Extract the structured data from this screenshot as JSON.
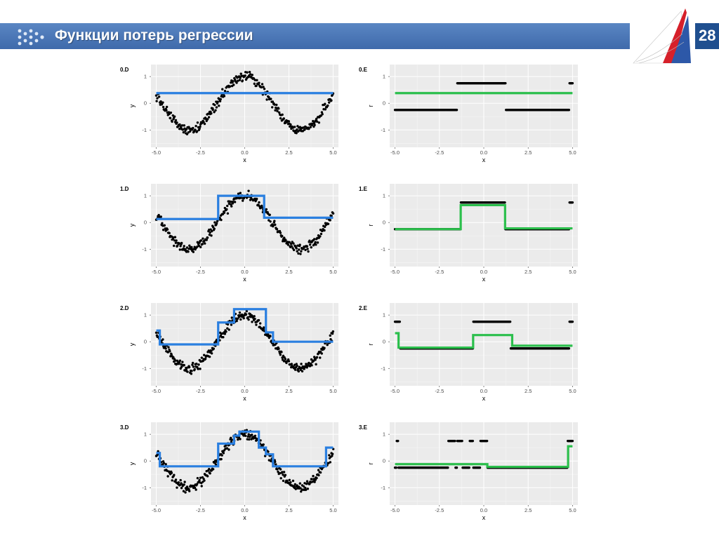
{
  "slide": {
    "title": "Функции потерь регрессии",
    "page_number": "28",
    "accent_color": "#4472c4",
    "icons": [
      "dots-logo-icon",
      "corner-emblem-icon"
    ]
  },
  "chart_data": [
    {
      "id": "0.D",
      "type": "scatter",
      "title": "0.D",
      "xlabel": "x",
      "ylabel": "y",
      "xlim": [
        -5.3,
        5.3
      ],
      "ylim": [
        -1.65,
        1.45
      ],
      "xticks": [
        "-5.0",
        "-2.5",
        "0.0",
        "2.5",
        "5.0"
      ],
      "yticks": [
        "1",
        "0",
        "-1"
      ],
      "points": "sine",
      "line_color": "#2a7fe0",
      "fit_steps": [
        [
          -5,
          0.38
        ],
        [
          5,
          0.38
        ]
      ]
    },
    {
      "id": "0.E",
      "type": "scatter",
      "title": "0.E",
      "xlabel": "x",
      "ylabel": "r",
      "xlim": [
        -5.3,
        5.3
      ],
      "ylim": [
        -1.65,
        1.45
      ],
      "xticks": [
        "-5.0",
        "-2.5",
        "0.0",
        "2.5",
        "5.0"
      ],
      "yticks": [
        "1",
        "0",
        "-1"
      ],
      "points": "residual",
      "line_color": "#2bbf4c",
      "levels": [
        -0.25,
        0.75
      ],
      "high_ranges": [
        [
          -1.5,
          1.25
        ],
        [
          4.8,
          5
        ]
      ],
      "fit_steps": [
        [
          -5,
          0.38
        ],
        [
          5,
          0.38
        ]
      ]
    },
    {
      "id": "1.D",
      "type": "scatter",
      "title": "1.D",
      "xlabel": "x",
      "ylabel": "y",
      "xlim": [
        -5.3,
        5.3
      ],
      "ylim": [
        -1.65,
        1.45
      ],
      "xticks": [
        "-5.0",
        "-2.5",
        "0.0",
        "2.5",
        "5.0"
      ],
      "yticks": [
        "1",
        "0",
        "-1"
      ],
      "points": "sine",
      "line_color": "#2a7fe0",
      "fit_steps": [
        [
          -5,
          0.13
        ],
        [
          -1.5,
          1.0
        ],
        [
          1.1,
          0.18
        ],
        [
          5,
          0.18
        ]
      ]
    },
    {
      "id": "1.E",
      "type": "scatter",
      "title": "1.E",
      "xlabel": "x",
      "ylabel": "r",
      "xlim": [
        -5.3,
        5.3
      ],
      "ylim": [
        -1.65,
        1.45
      ],
      "xticks": [
        "-5.0",
        "-2.5",
        "0.0",
        "2.5",
        "5.0"
      ],
      "yticks": [
        "1",
        "0",
        "-1"
      ],
      "points": "residual",
      "line_color": "#2bbf4c",
      "levels": [
        -0.25,
        0.75
      ],
      "high_ranges": [
        [
          -1.3,
          1.2
        ],
        [
          4.8,
          5
        ]
      ],
      "fit_steps": [
        [
          -5,
          -0.25
        ],
        [
          -1.3,
          0.65
        ],
        [
          1.2,
          -0.22
        ],
        [
          5,
          -0.22
        ]
      ]
    },
    {
      "id": "2.D",
      "type": "scatter",
      "title": "2.D",
      "xlabel": "x",
      "ylabel": "y",
      "xlim": [
        -5.3,
        5.3
      ],
      "ylim": [
        -1.65,
        1.45
      ],
      "xticks": [
        "-5.0",
        "-2.5",
        "0.0",
        "2.5",
        "5.0"
      ],
      "yticks": [
        "1",
        "0",
        "-1"
      ],
      "points": "sine",
      "line_color": "#2a7fe0",
      "fit_steps": [
        [
          -5,
          0.42
        ],
        [
          -4.8,
          -0.1
        ],
        [
          -1.5,
          0.72
        ],
        [
          -0.6,
          1.22
        ],
        [
          1.2,
          0.35
        ],
        [
          1.6,
          0.0
        ],
        [
          5,
          0.0
        ]
      ]
    },
    {
      "id": "2.E",
      "type": "scatter",
      "title": "2.E",
      "xlabel": "x",
      "ylabel": "r",
      "xlim": [
        -5.3,
        5.3
      ],
      "ylim": [
        -1.65,
        1.45
      ],
      "xticks": [
        "-5.0",
        "-2.5",
        "0.0",
        "2.5",
        "5.0"
      ],
      "yticks": [
        "1",
        "0",
        "-1"
      ],
      "points": "residual",
      "line_color": "#2bbf4c",
      "levels": [
        -0.25,
        0.75
      ],
      "high_ranges": [
        [
          -5,
          -4.7
        ],
        [
          -0.6,
          1.5
        ],
        [
          4.8,
          5
        ]
      ],
      "fit_steps": [
        [
          -5,
          0.32
        ],
        [
          -4.8,
          -0.22
        ],
        [
          -0.6,
          0.25
        ],
        [
          1.6,
          -0.15
        ],
        [
          5,
          -0.15
        ]
      ]
    },
    {
      "id": "3.D",
      "type": "scatter",
      "title": "3.D",
      "xlabel": "x",
      "ylabel": "y",
      "xlim": [
        -5.3,
        5.3
      ],
      "ylim": [
        -1.65,
        1.45
      ],
      "xticks": [
        "-5.0",
        "-2.5",
        "0.0",
        "2.5",
        "5.0"
      ],
      "yticks": [
        "1",
        "0",
        "-1"
      ],
      "points": "sine",
      "line_color": "#2a7fe0",
      "fit_steps": [
        [
          -5,
          0.3
        ],
        [
          -4.8,
          -0.2
        ],
        [
          -1.5,
          0.65
        ],
        [
          -0.6,
          0.95
        ],
        [
          -0.3,
          1.1
        ],
        [
          0.8,
          0.5
        ],
        [
          1.2,
          0.25
        ],
        [
          1.6,
          -0.2
        ],
        [
          4.6,
          0.5
        ],
        [
          5,
          0.5
        ]
      ]
    },
    {
      "id": "3.E",
      "type": "scatter",
      "title": "3.E",
      "xlabel": "x",
      "ylabel": "r",
      "xlim": [
        -5.3,
        5.3
      ],
      "ylim": [
        -1.65,
        1.45
      ],
      "xticks": [
        "-5.0",
        "-2.5",
        "0.0",
        "2.5",
        "5.0"
      ],
      "yticks": [
        "1",
        "0",
        "-1"
      ],
      "points": "residual",
      "line_color": "#2bbf4c",
      "levels": [
        -0.25,
        0.75
      ],
      "high_ranges": [
        [
          -4.9,
          -4.8
        ],
        [
          -2.0,
          -1.6
        ],
        [
          -1.5,
          -1.2
        ],
        [
          -0.8,
          -0.6
        ],
        [
          -0.2,
          0.2
        ],
        [
          4.7,
          5
        ]
      ],
      "fit_steps": [
        [
          -5,
          -0.12
        ],
        [
          0.2,
          -0.22
        ],
        [
          4.75,
          0.55
        ],
        [
          5,
          0.55
        ]
      ]
    }
  ]
}
